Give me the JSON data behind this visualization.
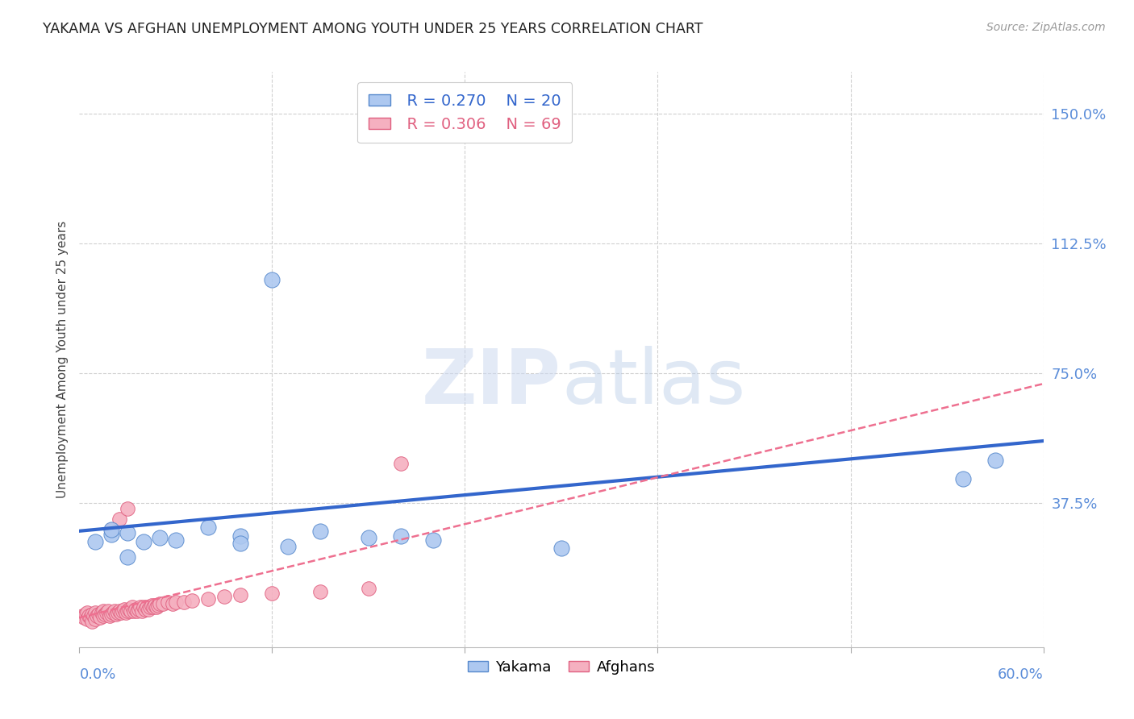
{
  "title": "YAKAMA VS AFGHAN UNEMPLOYMENT AMONG YOUTH UNDER 25 YEARS CORRELATION CHART",
  "source": "Source: ZipAtlas.com",
  "ylabel": "Unemployment Among Youth under 25 years",
  "ytick_labels": [
    "150.0%",
    "112.5%",
    "75.0%",
    "37.5%"
  ],
  "ytick_values": [
    1.5,
    1.125,
    0.75,
    0.375
  ],
  "xlim": [
    0.0,
    0.6
  ],
  "ylim": [
    -0.04,
    1.62
  ],
  "yakama_color": "#adc8f0",
  "afghan_color": "#f5b0c0",
  "yakama_edge_color": "#5588cc",
  "afghan_edge_color": "#e06080",
  "yakama_line_color": "#3366cc",
  "afghan_line_color": "#ee7090",
  "watermark_color": "#dce8f8",
  "legend_yakama_r": "R = 0.270",
  "legend_yakama_n": "N = 20",
  "legend_afghan_r": "R = 0.306",
  "legend_afghan_n": "N = 69",
  "yakama_x": [
    0.01,
    0.02,
    0.02,
    0.03,
    0.03,
    0.04,
    0.05,
    0.06,
    0.08,
    0.1,
    0.1,
    0.12,
    0.13,
    0.15,
    0.18,
    0.2,
    0.22,
    0.3,
    0.55,
    0.57
  ],
  "yakama_y": [
    0.265,
    0.285,
    0.3,
    0.22,
    0.29,
    0.265,
    0.275,
    0.27,
    0.305,
    0.28,
    0.26,
    1.02,
    0.25,
    0.295,
    0.275,
    0.28,
    0.27,
    0.245,
    0.445,
    0.5
  ],
  "afghan_x": [
    0.002,
    0.003,
    0.004,
    0.005,
    0.005,
    0.006,
    0.007,
    0.008,
    0.008,
    0.009,
    0.01,
    0.01,
    0.011,
    0.012,
    0.013,
    0.014,
    0.015,
    0.015,
    0.016,
    0.017,
    0.018,
    0.019,
    0.02,
    0.02,
    0.021,
    0.022,
    0.023,
    0.024,
    0.025,
    0.025,
    0.026,
    0.027,
    0.028,
    0.029,
    0.03,
    0.03,
    0.031,
    0.032,
    0.033,
    0.034,
    0.035,
    0.036,
    0.037,
    0.038,
    0.039,
    0.04,
    0.041,
    0.042,
    0.043,
    0.044,
    0.045,
    0.046,
    0.047,
    0.048,
    0.049,
    0.05,
    0.052,
    0.055,
    0.058,
    0.06,
    0.065,
    0.07,
    0.08,
    0.09,
    0.1,
    0.12,
    0.15,
    0.18,
    0.2
  ],
  "afghan_y": [
    0.05,
    0.045,
    0.055,
    0.06,
    0.04,
    0.05,
    0.045,
    0.055,
    0.035,
    0.05,
    0.06,
    0.04,
    0.05,
    0.055,
    0.045,
    0.06,
    0.065,
    0.05,
    0.055,
    0.06,
    0.065,
    0.05,
    0.055,
    0.3,
    0.06,
    0.065,
    0.055,
    0.06,
    0.065,
    0.33,
    0.06,
    0.065,
    0.07,
    0.06,
    0.065,
    0.36,
    0.07,
    0.065,
    0.075,
    0.065,
    0.07,
    0.065,
    0.07,
    0.075,
    0.065,
    0.075,
    0.07,
    0.075,
    0.07,
    0.075,
    0.08,
    0.075,
    0.08,
    0.075,
    0.08,
    0.085,
    0.085,
    0.09,
    0.085,
    0.09,
    0.09,
    0.095,
    0.1,
    0.105,
    0.11,
    0.115,
    0.12,
    0.13,
    0.49
  ],
  "background_color": "#ffffff",
  "grid_color": "#d0d0d0",
  "yakama_trendline_x": [
    0.0,
    0.6
  ],
  "yakama_trendline_y": [
    0.295,
    0.555
  ],
  "afghan_trendline_x": [
    0.0,
    0.6
  ],
  "afghan_trendline_y": [
    0.045,
    0.72
  ]
}
